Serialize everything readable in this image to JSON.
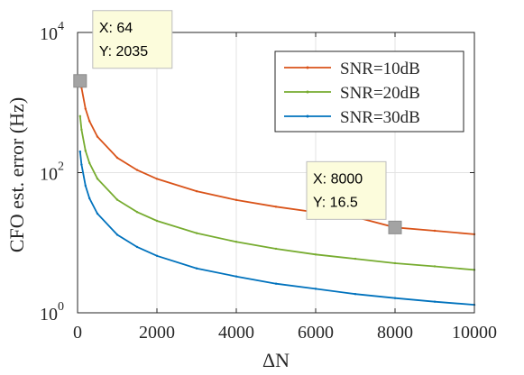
{
  "chart_data": {
    "type": "line",
    "title": "",
    "xlabel": "ΔN",
    "ylabel": "CFO est. error (Hz)",
    "xlim": [
      0,
      10000
    ],
    "ylim": [
      1,
      10000
    ],
    "yscale": "log",
    "grid": true,
    "legend_position": "top-right",
    "x_ticks": [
      "0",
      "2000",
      "4000",
      "6000",
      "8000",
      "10000"
    ],
    "y_ticks": [
      {
        "base": "10",
        "exp": "0"
      },
      {
        "base": "10",
        "exp": "2"
      },
      {
        "base": "10",
        "exp": "4"
      }
    ],
    "series": [
      {
        "name": "SNR=10dB",
        "color": "#d95319",
        "x": [
          64,
          100,
          200,
          300,
          500,
          1000,
          1500,
          2000,
          3000,
          4000,
          5000,
          6000,
          7000,
          8000,
          9000,
          10000
        ],
        "y": [
          2035,
          1630,
          815,
          543,
          326,
          163,
          109,
          81.5,
          54.3,
          40.7,
          32.6,
          27.2,
          23.3,
          16.5,
          14.8,
          13.2
        ]
      },
      {
        "name": "SNR=20dB",
        "color": "#77ac30",
        "x": [
          64,
          100,
          200,
          300,
          500,
          1000,
          1500,
          2000,
          3000,
          4000,
          5000,
          6000,
          7000,
          8000,
          9000,
          10000
        ],
        "y": [
          640,
          410,
          205,
          137,
          82,
          41,
          27.4,
          20.5,
          13.7,
          10.3,
          8.2,
          6.8,
          5.9,
          5.1,
          4.6,
          4.1
        ]
      },
      {
        "name": "SNR=30dB",
        "color": "#0072bd",
        "x": [
          64,
          100,
          200,
          300,
          500,
          1000,
          1500,
          2000,
          3000,
          4000,
          5000,
          6000,
          7000,
          8000,
          9000,
          10000
        ],
        "y": [
          200,
          130,
          65,
          43,
          26,
          13,
          8.7,
          6.5,
          4.3,
          3.3,
          2.6,
          2.2,
          1.85,
          1.62,
          1.44,
          1.3
        ]
      }
    ],
    "datatips": [
      {
        "x": 64,
        "y": 2035,
        "x_label": "X: 64",
        "y_label": "Y: 2035"
      },
      {
        "x": 8000,
        "y": 16.5,
        "x_label": "X: 8000",
        "y_label": "Y: 16.5"
      }
    ]
  }
}
